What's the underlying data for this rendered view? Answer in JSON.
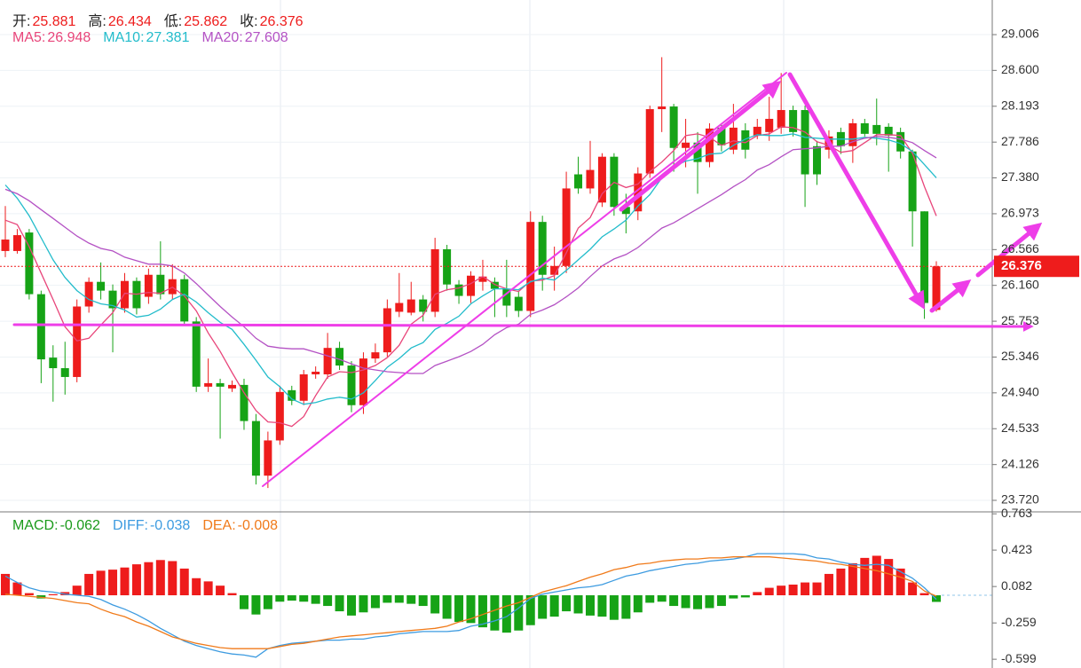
{
  "chart_data": [
    {
      "type": "candlestick",
      "ohlc_labels": [
        "开:",
        "高:",
        "低:",
        "收:"
      ],
      "open": [
        26.55,
        26.55,
        26.76,
        26.06,
        25.34,
        25.22,
        25.12,
        25.92,
        26.2,
        26.1,
        25.9,
        26.21,
        26.03,
        26.28,
        26.06,
        26.23,
        25.75,
        25.01,
        25.05,
        24.99,
        25.03,
        24.62,
        24.0,
        24.4,
        24.97,
        24.85,
        25.15,
        25.15,
        25.45,
        25.25,
        24.8,
        25.33,
        25.4,
        25.86,
        25.85,
        26.0,
        25.86,
        26.57,
        26.17,
        26.04,
        26.2,
        26.2,
        26.12,
        26.03,
        25.87,
        26.88,
        26.28,
        26.38,
        27.42,
        27.26,
        27.1,
        27.62,
        27.05,
        27.0,
        27.43,
        28.16,
        28.19,
        27.72,
        27.78,
        27.56,
        27.95,
        27.7,
        27.92,
        27.86,
        27.9,
        27.95,
        28.15,
        28.15,
        27.74,
        27.7,
        27.9,
        27.74,
        28.0,
        27.98,
        27.96,
        27.9,
        27.68,
        27.0,
        25.881
      ],
      "high": [
        27.06,
        26.8,
        26.8,
        26.1,
        25.48,
        25.52,
        26.0,
        26.25,
        26.42,
        26.17,
        26.3,
        26.25,
        26.35,
        26.66,
        26.4,
        26.28,
        25.8,
        25.33,
        25.1,
        25.08,
        25.1,
        24.7,
        24.5,
        25.02,
        25.02,
        25.2,
        25.24,
        25.62,
        25.52,
        25.3,
        25.4,
        25.5,
        26.0,
        26.3,
        26.2,
        26.05,
        26.7,
        26.62,
        26.22,
        26.32,
        26.45,
        26.25,
        26.45,
        26.1,
        27.0,
        26.95,
        26.6,
        27.45,
        27.62,
        27.8,
        27.66,
        27.66,
        27.2,
        27.5,
        28.2,
        28.75,
        28.22,
        28.05,
        27.9,
        28.0,
        28.0,
        28.22,
        28.0,
        28.05,
        28.3,
        28.57,
        28.2,
        28.2,
        27.8,
        27.92,
        27.95,
        28.05,
        28.05,
        28.28,
        28.0,
        27.95,
        27.7,
        27.0,
        26.434
      ],
      "low": [
        26.48,
        26.52,
        26.0,
        25.05,
        24.84,
        24.92,
        25.06,
        25.85,
        26.0,
        25.4,
        25.85,
        25.83,
        25.95,
        26.0,
        26.0,
        25.7,
        24.95,
        24.95,
        24.42,
        24.95,
        24.52,
        23.9,
        23.86,
        24.35,
        24.8,
        24.8,
        25.1,
        25.1,
        25.2,
        24.72,
        24.7,
        25.28,
        25.35,
        25.8,
        25.82,
        25.75,
        25.8,
        26.1,
        25.95,
        25.96,
        26.1,
        25.8,
        25.8,
        25.8,
        25.8,
        26.1,
        26.1,
        26.3,
        27.2,
        27.2,
        27.05,
        26.95,
        26.75,
        26.9,
        27.38,
        27.9,
        27.45,
        27.5,
        27.2,
        27.5,
        27.68,
        27.65,
        27.6,
        27.82,
        27.8,
        27.88,
        27.85,
        27.05,
        27.3,
        27.6,
        27.65,
        27.55,
        27.85,
        27.75,
        27.45,
        27.6,
        26.6,
        25.78,
        25.862
      ],
      "close": [
        26.68,
        26.73,
        26.06,
        25.32,
        25.22,
        25.12,
        25.92,
        26.2,
        26.1,
        25.9,
        26.21,
        25.9,
        26.28,
        26.06,
        26.23,
        25.75,
        25.01,
        25.05,
        25.01,
        25.03,
        24.62,
        24.0,
        24.4,
        24.95,
        24.85,
        25.15,
        25.18,
        25.45,
        25.25,
        24.8,
        25.33,
        25.4,
        25.9,
        25.96,
        26.0,
        25.86,
        26.57,
        26.17,
        26.04,
        26.27,
        26.26,
        26.12,
        25.93,
        25.87,
        26.88,
        26.28,
        26.38,
        27.26,
        27.26,
        27.47,
        27.62,
        27.05,
        26.97,
        27.43,
        28.16,
        28.19,
        27.72,
        27.78,
        27.56,
        27.94,
        27.75,
        27.95,
        27.7,
        27.96,
        28.05,
        28.15,
        27.9,
        27.42,
        27.42,
        27.85,
        27.74,
        28.0,
        27.88,
        27.88,
        27.86,
        27.68,
        27.0,
        25.96,
        26.376
      ],
      "up_color": "#ee1c1c",
      "down_color": "#16a316",
      "series": [
        {
          "name": "MA5:",
          "color": "#e8457a",
          "values": [
            26.9,
            26.85,
            26.6,
            26.3,
            26.0,
            25.69,
            25.53,
            25.56,
            25.71,
            25.85,
            26.07,
            26.06,
            26.08,
            26.07,
            26.14,
            26.04,
            25.87,
            25.62,
            25.41,
            25.17,
            24.94,
            24.74,
            24.61,
            24.6,
            24.56,
            24.67,
            24.91,
            25.12,
            25.18,
            25.17,
            25.2,
            25.25,
            25.34,
            25.48,
            25.72,
            25.82,
            26.06,
            26.11,
            26.13,
            26.18,
            26.26,
            26.17,
            26.12,
            26.09,
            26.21,
            26.22,
            26.27,
            26.53,
            26.81,
            26.93,
            27.2,
            27.33,
            27.27,
            27.31,
            27.45,
            27.56,
            27.69,
            27.86,
            27.88,
            27.84,
            27.75,
            27.8,
            27.78,
            27.86,
            27.88,
            27.96,
            27.95,
            27.9,
            27.79,
            27.75,
            27.67,
            27.69,
            27.78,
            27.87,
            27.87,
            27.86,
            27.66,
            27.28,
            26.948
          ]
        },
        {
          "name": "MA10:",
          "color": "#22bccb",
          "values": [
            27.3,
            27.15,
            26.95,
            26.7,
            26.45,
            26.25,
            26.1,
            26.0,
            25.95,
            25.93,
            25.88,
            25.8,
            25.82,
            25.89,
            26.0,
            26.06,
            25.97,
            25.85,
            25.74,
            25.66,
            25.49,
            25.31,
            25.12,
            25.01,
            24.87,
            24.81,
            24.83,
            24.87,
            24.89,
            24.87,
            24.94,
            25.08,
            25.23,
            25.33,
            25.45,
            25.51,
            25.66,
            25.73,
            25.81,
            25.95,
            26.04,
            26.12,
            26.12,
            26.11,
            26.2,
            26.24,
            26.22,
            26.33,
            26.45,
            26.57,
            26.71,
            26.8,
            26.9,
            27.06,
            27.19,
            27.38,
            27.51,
            27.57,
            27.6,
            27.65,
            27.66,
            27.75,
            27.82,
            27.87,
            27.86,
            27.86,
            27.88,
            27.84,
            27.83,
            27.82,
            27.82,
            27.82,
            27.84,
            27.83,
            27.81,
            27.77,
            27.68,
            27.53,
            27.381
          ]
        },
        {
          "name": "MA20:",
          "color": "#b452c4",
          "values": [
            27.25,
            27.2,
            27.12,
            27.02,
            26.92,
            26.82,
            26.72,
            26.64,
            26.58,
            26.55,
            26.48,
            26.44,
            26.4,
            26.4,
            26.38,
            26.3,
            26.18,
            26.05,
            25.92,
            25.8,
            25.69,
            25.56,
            25.47,
            25.45,
            25.44,
            25.44,
            25.4,
            25.36,
            25.32,
            25.27,
            25.22,
            25.2,
            25.18,
            25.17,
            25.16,
            25.16,
            25.25,
            25.3,
            25.35,
            25.41,
            25.49,
            25.6,
            25.68,
            25.72,
            25.83,
            25.88,
            25.94,
            26.03,
            26.13,
            26.26,
            26.38,
            26.46,
            26.51,
            26.59,
            26.7,
            26.81,
            26.87,
            26.95,
            27.03,
            27.11,
            27.19,
            27.28,
            27.36,
            27.47,
            27.53,
            27.62,
            27.7,
            27.71,
            27.72,
            27.74,
            27.74,
            27.79,
            27.83,
            27.85,
            27.84,
            27.82,
            27.78,
            27.69,
            27.608
          ]
        }
      ],
      "ylim": [
        23.589,
        29.399
      ],
      "yticks": [
        29.006,
        {
          "value": 28.6,
          "label": "28.600"
        },
        28.193,
        27.786,
        {
          "value": 27.38,
          "label": "27.380"
        },
        26.973,
        26.566,
        {
          "value": 26.16,
          "label": "26.160"
        },
        25.753,
        25.346,
        {
          "value": 24.94,
          "label": "24.940"
        },
        24.533,
        24.126,
        {
          "value": 23.72,
          "label": "23.720"
        }
      ],
      "grid": true,
      "last_price_line": true
    },
    {
      "type": "macd",
      "histogram": {
        "name": "MACD:",
        "legend_color": "#1a9a1a",
        "up_color": "#ee1c1c",
        "down_color": "#16a316",
        "values": [
          0.2,
          0.12,
          0.02,
          -0.03,
          0.01,
          0.03,
          0.09,
          0.2,
          0.23,
          0.24,
          0.26,
          0.29,
          0.31,
          0.33,
          0.32,
          0.25,
          0.16,
          0.13,
          0.09,
          0.02,
          -0.13,
          -0.18,
          -0.13,
          -0.06,
          -0.05,
          -0.06,
          -0.08,
          -0.1,
          -0.15,
          -0.19,
          -0.16,
          -0.12,
          -0.07,
          -0.07,
          -0.08,
          -0.1,
          -0.17,
          -0.22,
          -0.25,
          -0.26,
          -0.3,
          -0.33,
          -0.35,
          -0.33,
          -0.28,
          -0.22,
          -0.2,
          -0.15,
          -0.17,
          -0.19,
          -0.2,
          -0.23,
          -0.22,
          -0.16,
          -0.07,
          -0.06,
          -0.1,
          -0.12,
          -0.13,
          -0.12,
          -0.1,
          -0.03,
          -0.02,
          0.03,
          0.07,
          0.09,
          0.1,
          0.12,
          0.12,
          0.2,
          0.25,
          0.3,
          0.35,
          0.37,
          0.34,
          0.25,
          0.12,
          0.02,
          -0.062
        ]
      },
      "series": [
        {
          "name": "DIFF:",
          "color": "#3d9be0",
          "values": [
            0.18,
            0.12,
            0.07,
            0.04,
            0.03,
            0.01,
            0.0,
            -0.01,
            -0.04,
            -0.09,
            -0.13,
            -0.18,
            -0.24,
            -0.31,
            -0.37,
            -0.43,
            -0.47,
            -0.5,
            -0.53,
            -0.55,
            -0.56,
            -0.58,
            -0.5,
            -0.47,
            -0.45,
            -0.44,
            -0.43,
            -0.42,
            -0.42,
            -0.41,
            -0.41,
            -0.39,
            -0.38,
            -0.36,
            -0.35,
            -0.34,
            -0.34,
            -0.34,
            -0.33,
            -0.29,
            -0.27,
            -0.24,
            -0.2,
            -0.12,
            -0.03,
            0.01,
            0.03,
            0.05,
            0.07,
            0.08,
            0.1,
            0.14,
            0.18,
            0.2,
            0.23,
            0.25,
            0.27,
            0.29,
            0.3,
            0.32,
            0.33,
            0.34,
            0.36,
            0.39,
            0.39,
            0.39,
            0.39,
            0.38,
            0.35,
            0.34,
            0.31,
            0.29,
            0.28,
            0.29,
            0.28,
            0.22,
            0.16,
            0.07,
            -0.038
          ]
        },
        {
          "name": "DEA:",
          "color": "#f07a1a",
          "values": [
            0.01,
            0.0,
            -0.01,
            -0.02,
            -0.03,
            -0.05,
            -0.07,
            -0.08,
            -0.13,
            -0.17,
            -0.2,
            -0.25,
            -0.29,
            -0.34,
            -0.39,
            -0.42,
            -0.45,
            -0.47,
            -0.49,
            -0.5,
            -0.5,
            -0.5,
            -0.5,
            -0.48,
            -0.46,
            -0.45,
            -0.43,
            -0.41,
            -0.39,
            -0.38,
            -0.37,
            -0.36,
            -0.35,
            -0.34,
            -0.33,
            -0.32,
            -0.31,
            -0.29,
            -0.25,
            -0.22,
            -0.18,
            -0.14,
            -0.1,
            -0.07,
            -0.02,
            0.03,
            0.06,
            0.09,
            0.13,
            0.17,
            0.2,
            0.24,
            0.26,
            0.29,
            0.3,
            0.32,
            0.33,
            0.34,
            0.34,
            0.35,
            0.35,
            0.36,
            0.36,
            0.36,
            0.36,
            0.35,
            0.34,
            0.33,
            0.32,
            0.3,
            0.29,
            0.27,
            0.25,
            0.23,
            0.2,
            0.17,
            0.13,
            0.04,
            -0.008
          ]
        }
      ],
      "ylim": [
        -0.681,
        0.781
      ],
      "yticks": [
        0.763,
        0.423,
        0.082,
        -0.259,
        -0.599
      ]
    }
  ]
}
